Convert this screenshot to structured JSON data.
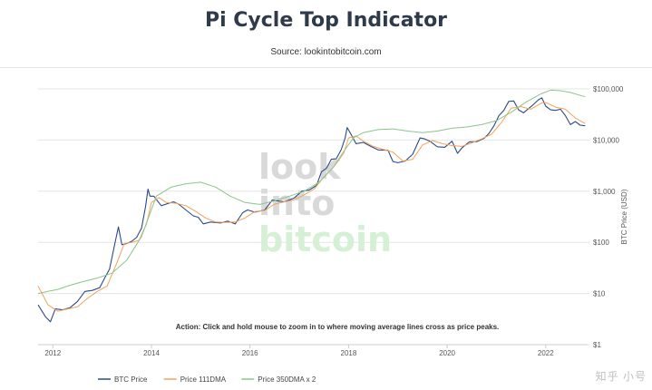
{
  "chart_data": {
    "type": "line",
    "title": "Pi Cycle Top Indicator",
    "subtitle": "Source: lookintobitcoin.com",
    "xlabel": "",
    "ylabel": "BTC Price (USD)",
    "y_scale": "log",
    "ylim": [
      1,
      100000
    ],
    "xlim": [
      2011.7,
      2022.85
    ],
    "x_ticks": [
      2012,
      2014,
      2016,
      2018,
      2020,
      2022
    ],
    "x_tick_labels": [
      "2012",
      "2014",
      "2016",
      "2018",
      "2020",
      "2022"
    ],
    "y_ticks": [
      1,
      10,
      100,
      1000,
      10000,
      100000
    ],
    "y_tick_labels": [
      "$1",
      "$10",
      "$100",
      "$1,000",
      "$10,000",
      "$100,000"
    ],
    "grid": true,
    "legend_position": "bottom-left",
    "annotation": "Action: Click and hold mouse to zoom in to where moving average lines cross as price peaks.",
    "watermark": [
      "look",
      "into",
      "bitcoin"
    ],
    "series": [
      {
        "name": "BTC Price",
        "color": "#2b4a8a",
        "x": [
          2011.7,
          2011.85,
          2011.95,
          2012.05,
          2012.2,
          2012.35,
          2012.5,
          2012.65,
          2012.8,
          2012.95,
          2013.05,
          2013.15,
          2013.28,
          2013.33,
          2013.4,
          2013.5,
          2013.6,
          2013.7,
          2013.8,
          2013.88,
          2013.93,
          2013.97,
          2014.05,
          2014.12,
          2014.2,
          2014.35,
          2014.45,
          2014.55,
          2014.7,
          2014.85,
          2014.95,
          2015.05,
          2015.2,
          2015.4,
          2015.55,
          2015.7,
          2015.85,
          2015.95,
          2016.1,
          2016.3,
          2016.45,
          2016.55,
          2016.7,
          2016.9,
          2017.05,
          2017.2,
          2017.35,
          2017.45,
          2017.55,
          2017.65,
          2017.75,
          2017.85,
          2017.93,
          2017.97,
          2018.05,
          2018.15,
          2018.3,
          2018.45,
          2018.6,
          2018.8,
          2018.9,
          2019.0,
          2019.15,
          2019.3,
          2019.45,
          2019.55,
          2019.65,
          2019.8,
          2019.95,
          2020.1,
          2020.21,
          2020.3,
          2020.45,
          2020.6,
          2020.75,
          2020.85,
          2020.95,
          2021.05,
          2021.15,
          2021.25,
          2021.35,
          2021.45,
          2021.55,
          2021.7,
          2021.85,
          2021.92,
          2022.0,
          2022.1,
          2022.2,
          2022.3,
          2022.4,
          2022.5,
          2022.6,
          2022.7,
          2022.8
        ],
        "values": [
          6,
          3.5,
          2.8,
          5,
          4.8,
          5.3,
          7,
          11,
          11.5,
          13,
          20,
          30,
          120,
          200,
          90,
          95,
          105,
          125,
          190,
          500,
          1100,
          800,
          800,
          650,
          520,
          580,
          620,
          560,
          430,
          330,
          310,
          230,
          250,
          240,
          260,
          230,
          380,
          430,
          390,
          430,
          670,
          650,
          620,
          740,
          1000,
          1050,
          1300,
          2400,
          2800,
          4200,
          4300,
          6500,
          11000,
          17500,
          13000,
          8500,
          9000,
          7500,
          6400,
          6300,
          3800,
          3600,
          3900,
          5300,
          11000,
          10500,
          9500,
          7400,
          7200,
          9500,
          5500,
          7000,
          9200,
          9300,
          10800,
          13500,
          19000,
          30000,
          38000,
          57000,
          58000,
          39000,
          34000,
          45000,
          61000,
          67000,
          46000,
          39000,
          38000,
          40000,
          30000,
          20000,
          23000,
          19500,
          19000
        ]
      },
      {
        "name": "Price 111DMA",
        "color": "#f4a259",
        "x": [
          2011.7,
          2011.9,
          2012.1,
          2012.3,
          2012.5,
          2012.7,
          2012.9,
          2013.1,
          2013.3,
          2013.45,
          2013.6,
          2013.75,
          2013.9,
          2014.0,
          2014.15,
          2014.3,
          2014.5,
          2014.7,
          2014.9,
          2015.1,
          2015.3,
          2015.5,
          2015.7,
          2015.9,
          2016.1,
          2016.3,
          2016.5,
          2016.7,
          2016.9,
          2017.1,
          2017.3,
          2017.5,
          2017.7,
          2017.9,
          2018.0,
          2018.15,
          2018.3,
          2018.5,
          2018.7,
          2018.9,
          2019.1,
          2019.3,
          2019.5,
          2019.7,
          2019.9,
          2020.1,
          2020.3,
          2020.5,
          2020.7,
          2020.9,
          2021.1,
          2021.3,
          2021.5,
          2021.7,
          2021.9,
          2022.0,
          2022.2,
          2022.4,
          2022.6,
          2022.8
        ],
        "values": [
          14,
          6,
          4.5,
          5,
          5.5,
          8,
          11,
          14,
          40,
          95,
          100,
          110,
          230,
          600,
          750,
          600,
          580,
          520,
          400,
          300,
          250,
          245,
          250,
          300,
          400,
          420,
          560,
          620,
          680,
          850,
          1100,
          1900,
          3000,
          5500,
          11000,
          12000,
          9500,
          7500,
          6600,
          5800,
          3900,
          4200,
          8000,
          9800,
          8500,
          7800,
          7500,
          8800,
          10500,
          13000,
          22000,
          42000,
          45000,
          40000,
          52000,
          54000,
          44000,
          40000,
          27000,
          21000
        ]
      },
      {
        "name": "Price 350DMA x 2",
        "color": "#8cc58b",
        "x": [
          2011.7,
          2011.9,
          2012.1,
          2012.3,
          2012.6,
          2012.9,
          2013.2,
          2013.5,
          2013.8,
          2014.1,
          2014.4,
          2014.7,
          2015.0,
          2015.3,
          2015.6,
          2015.9,
          2016.2,
          2016.5,
          2016.8,
          2017.1,
          2017.4,
          2017.7,
          2017.9,
          2018.1,
          2018.3,
          2018.6,
          2018.9,
          2019.2,
          2019.5,
          2019.8,
          2020.1,
          2020.4,
          2020.7,
          2021.0,
          2021.3,
          2021.6,
          2021.9,
          2022.1,
          2022.3,
          2022.5,
          2022.8
        ],
        "values": [
          10,
          11,
          12,
          14,
          17,
          20,
          25,
          45,
          130,
          800,
          1200,
          1400,
          1500,
          1200,
          800,
          600,
          550,
          650,
          800,
          1000,
          1500,
          3000,
          6000,
          11000,
          14000,
          16000,
          16500,
          15000,
          14000,
          15000,
          17000,
          18000,
          20000,
          24000,
          35000,
          55000,
          80000,
          95000,
          92000,
          85000,
          70000
        ]
      }
    ]
  },
  "branding": {
    "corner_watermark": "知乎 小号"
  }
}
